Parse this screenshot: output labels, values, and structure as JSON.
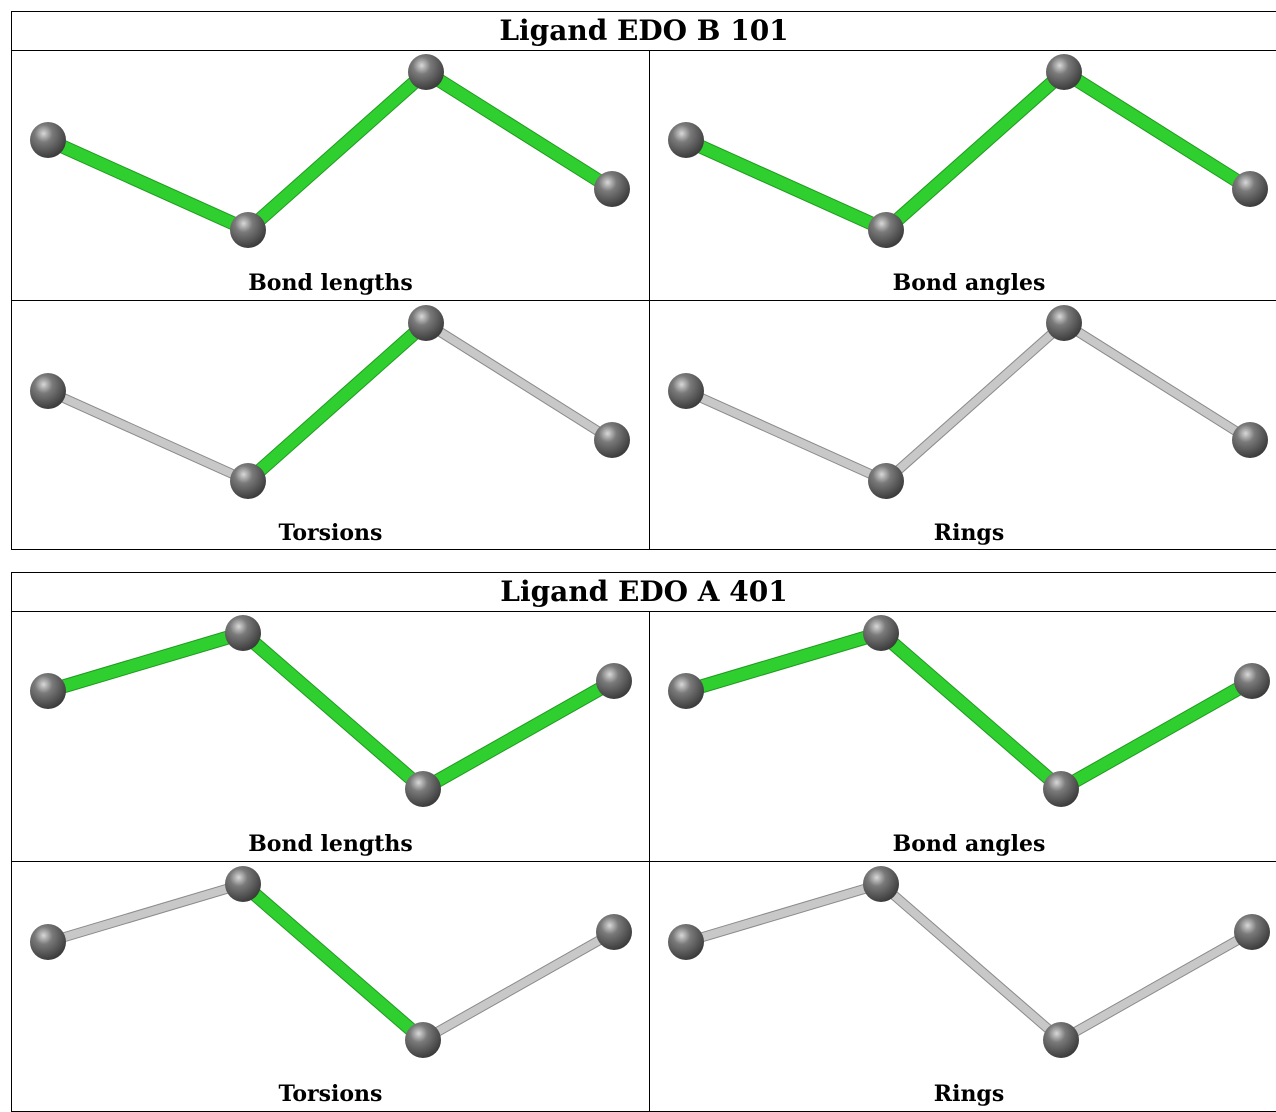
{
  "colors": {
    "flagged_bond": "#2fcf2f",
    "normal_bond": "#c8c8c8",
    "atom": "#7a7a7a",
    "border": "#000000"
  },
  "panels": [
    {
      "title": "Ligand EDO B 101",
      "views": [
        {
          "caption": "Bond lengths",
          "bonds": [
            "flagged",
            "flagged",
            "flagged"
          ]
        },
        {
          "caption": "Bond angles",
          "bonds": [
            "flagged",
            "flagged",
            "flagged"
          ]
        },
        {
          "caption": "Torsions",
          "bonds": [
            "normal",
            "flagged",
            "normal"
          ]
        },
        {
          "caption": "Rings",
          "bonds": [
            "normal",
            "normal",
            "normal"
          ]
        }
      ]
    },
    {
      "title": "Ligand EDO A 401",
      "views": [
        {
          "caption": "Bond lengths",
          "bonds": [
            "flagged",
            "flagged",
            "flagged"
          ]
        },
        {
          "caption": "Bond angles",
          "bonds": [
            "flagged",
            "flagged",
            "flagged"
          ]
        },
        {
          "caption": "Torsions",
          "bonds": [
            "normal",
            "flagged",
            "normal"
          ]
        },
        {
          "caption": "Rings",
          "bonds": [
            "normal",
            "normal",
            "normal"
          ]
        }
      ]
    }
  ]
}
